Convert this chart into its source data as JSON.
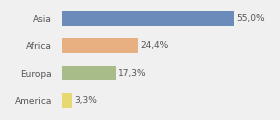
{
  "categories": [
    "Asia",
    "Africa",
    "Europa",
    "America"
  ],
  "values": [
    55.0,
    24.4,
    17.3,
    3.3
  ],
  "labels": [
    "55,0%",
    "24,4%",
    "17,3%",
    "3,3%"
  ],
  "bar_colors": [
    "#6b8cba",
    "#e8b080",
    "#a8bc8a",
    "#e8d870"
  ],
  "background_color": "#f0f0f0",
  "xlim": [
    0,
    68
  ],
  "label_fontsize": 6.5,
  "tick_fontsize": 6.5,
  "bar_height": 0.55
}
